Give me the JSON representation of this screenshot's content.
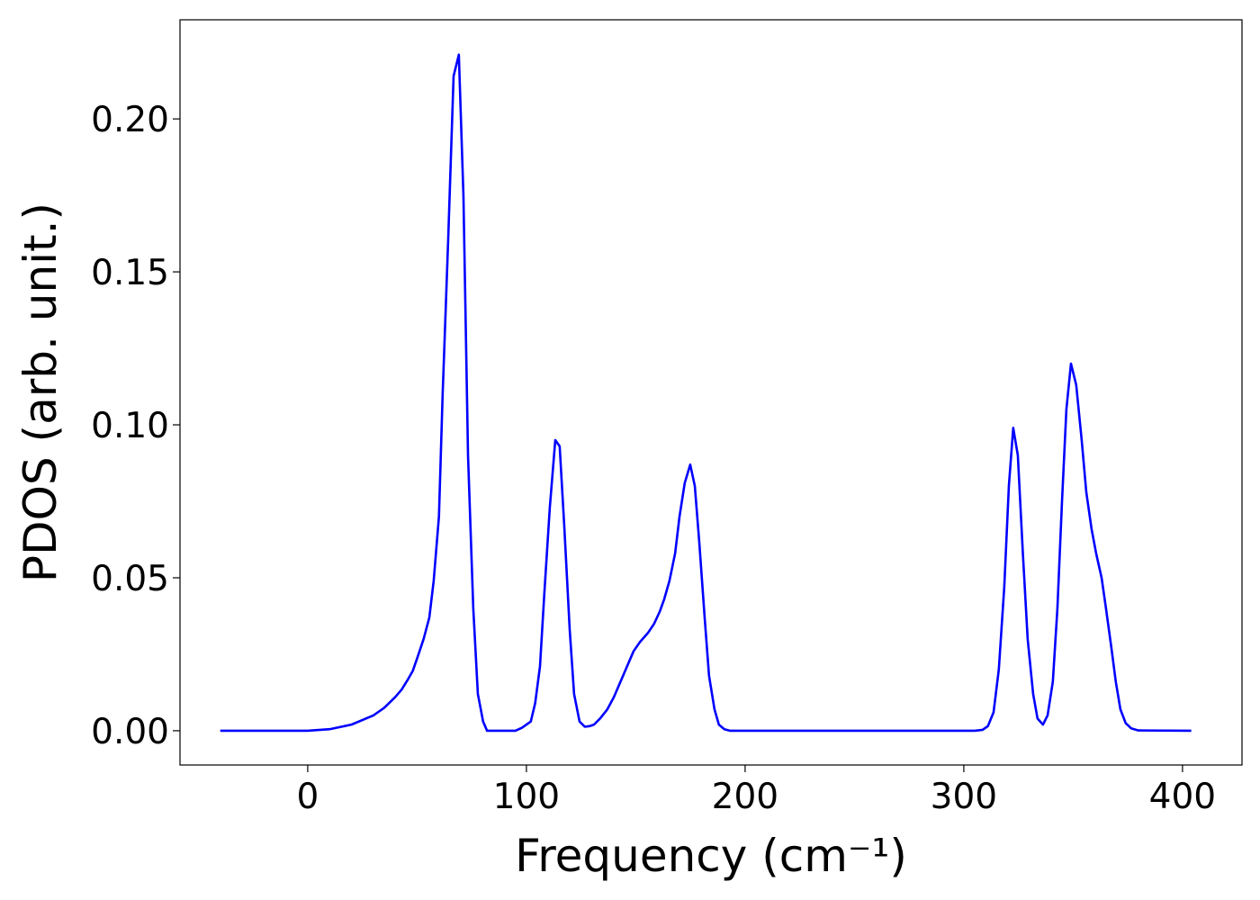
{
  "chart_data": {
    "type": "line",
    "x_label": "Frequency (cm⁻¹)",
    "y_label": "PDOS (arb. unit.)",
    "xlim": [
      -58.4,
      427.2
    ],
    "ylim": [
      -0.0112,
      0.2324
    ],
    "xticks": [
      0,
      100,
      200,
      300,
      400
    ],
    "yticks": [
      {
        "value": 0,
        "label": "0.00"
      },
      {
        "value": 0.05,
        "label": "0.05"
      },
      {
        "value": 0.1,
        "label": "0.10"
      },
      {
        "value": 0.15,
        "label": "0.15"
      },
      {
        "value": 0.2,
        "label": "0.20"
      }
    ],
    "x": [
      -40,
      0,
      10,
      20,
      30,
      35,
      40,
      43,
      46,
      48,
      50.2,
      53,
      55.6,
      57.6,
      60,
      61.7,
      64.2,
      66.7,
      69.1,
      71.2,
      73.3,
      75.7,
      77.8,
      80.2,
      82,
      95,
      98,
      102,
      104,
      106.2,
      108.2,
      110.7,
      113.2,
      115.2,
      117.3,
      119.8,
      121.8,
      124.3,
      126.7,
      128.8,
      130.9,
      133.7,
      137,
      140,
      143,
      146,
      149,
      151.9,
      155.6,
      158.4,
      161,
      163,
      165.4,
      168,
      170,
      172.4,
      174.9,
      177,
      179,
      181.5,
      183.5,
      186,
      188,
      190.5,
      193,
      305,
      308.6,
      311,
      313.6,
      316,
      318.5,
      320.6,
      322.6,
      324.7,
      327,
      329.2,
      331.7,
      333.7,
      336.2,
      338.3,
      340.7,
      342.8,
      344.9,
      346.9,
      349,
      351.4,
      353.9,
      356,
      358.4,
      360.5,
      363,
      365,
      367.5,
      369.5,
      371.6,
      374,
      376.5,
      379.8,
      404
    ],
    "series": [
      {
        "name": "PDOS",
        "color": "#0000ff",
        "values": [
          0,
          0,
          0.0005,
          0.002,
          0.005,
          0.0075,
          0.011,
          0.0135,
          0.017,
          0.0195,
          0.024,
          0.03,
          0.037,
          0.049,
          0.07,
          0.11,
          0.16,
          0.214,
          0.221,
          0.175,
          0.09,
          0.04,
          0.012,
          0.003,
          0,
          0,
          0.001,
          0.003,
          0.009,
          0.021,
          0.045,
          0.073,
          0.095,
          0.093,
          0.067,
          0.033,
          0.012,
          0.003,
          0.0013,
          0.0015,
          0.002,
          0.004,
          0.007,
          0.011,
          0.016,
          0.021,
          0.026,
          0.029,
          0.032,
          0.035,
          0.039,
          0.043,
          0.049,
          0.058,
          0.07,
          0.081,
          0.087,
          0.08,
          0.062,
          0.037,
          0.018,
          0.007,
          0.002,
          0.0005,
          0,
          0,
          0.0003,
          0.0015,
          0.006,
          0.02,
          0.047,
          0.08,
          0.099,
          0.09,
          0.058,
          0.03,
          0.012,
          0.004,
          0.002,
          0.005,
          0.016,
          0.04,
          0.075,
          0.105,
          0.12,
          0.113,
          0.095,
          0.078,
          0.066,
          0.058,
          0.05,
          0.04,
          0.027,
          0.016,
          0.007,
          0.0025,
          0.0008,
          0.0001,
          0
        ]
      }
    ]
  }
}
